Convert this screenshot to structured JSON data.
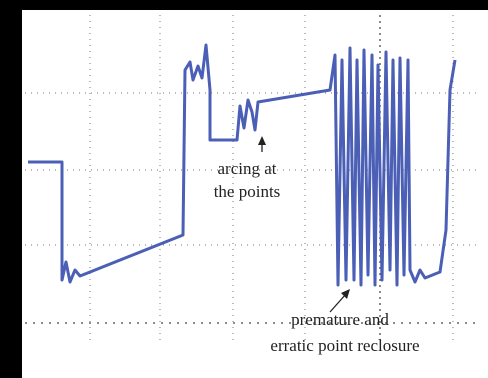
{
  "annotations": [
    {
      "lines": [
        "arcing at",
        "the points"
      ]
    },
    {
      "lines": [
        "premature and",
        "erratic point reclosure"
      ]
    }
  ]
}
